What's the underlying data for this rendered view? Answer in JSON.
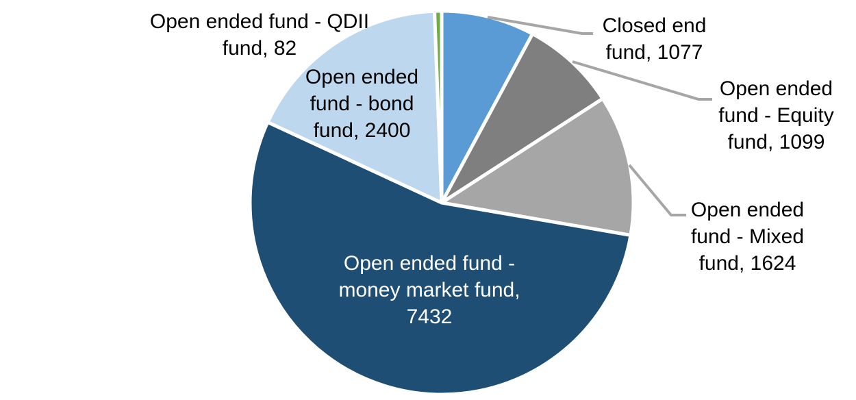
{
  "chart_data": {
    "type": "pie",
    "title": "",
    "total": 13714,
    "start_angle_deg": 0,
    "direction": "clockwise",
    "label_format": "category name, value",
    "background_color": "#FFFFFF",
    "leader_line_color": "#A6A6A6",
    "slice_border_color": "#FFFFFF",
    "slices": [
      {
        "id": "closed-end-fund",
        "label": "Closed end fund",
        "value": 1077,
        "color": "#5B9BD5",
        "display": "Closed end fund, 1077",
        "label_color": "#000000",
        "label_position": "outside-right",
        "leader_line": true
      },
      {
        "id": "equity-fund",
        "label": "Open ended fund - Equity fund",
        "value": 1099,
        "color": "#7F7F7F",
        "display": "Open ended fund - Equity fund, 1099",
        "label_color": "#000000",
        "label_position": "outside-right",
        "leader_line": true
      },
      {
        "id": "mixed-fund",
        "label": "Open ended fund - Mixed fund",
        "value": 1624,
        "color": "#A6A6A6",
        "display": "Open ended fund - Mixed fund, 1624",
        "label_color": "#000000",
        "label_position": "outside-right",
        "leader_line": true
      },
      {
        "id": "money-market-fund",
        "label": "Open ended fund - money market fund",
        "value": 7432,
        "color": "#1F4E74",
        "display": "Open ended fund - money market fund, 7432",
        "label_color": "#FFFFFF",
        "label_position": "inside",
        "leader_line": false
      },
      {
        "id": "bond-fund",
        "label": "Open ended fund - bond fund",
        "value": 2400,
        "color": "#BDD7EE",
        "display": "Open ended fund - bond fund, 2400",
        "label_color": "#000000",
        "label_position": "inside-top",
        "leader_line": false
      },
      {
        "id": "qdii-fund",
        "label": "Open ended fund - QDII fund",
        "value": 82,
        "color": "#70AD47",
        "display": "Open ended fund - QDII fund, 82",
        "label_color": "#000000",
        "label_position": "outside-top-left",
        "leader_line": false
      }
    ]
  }
}
